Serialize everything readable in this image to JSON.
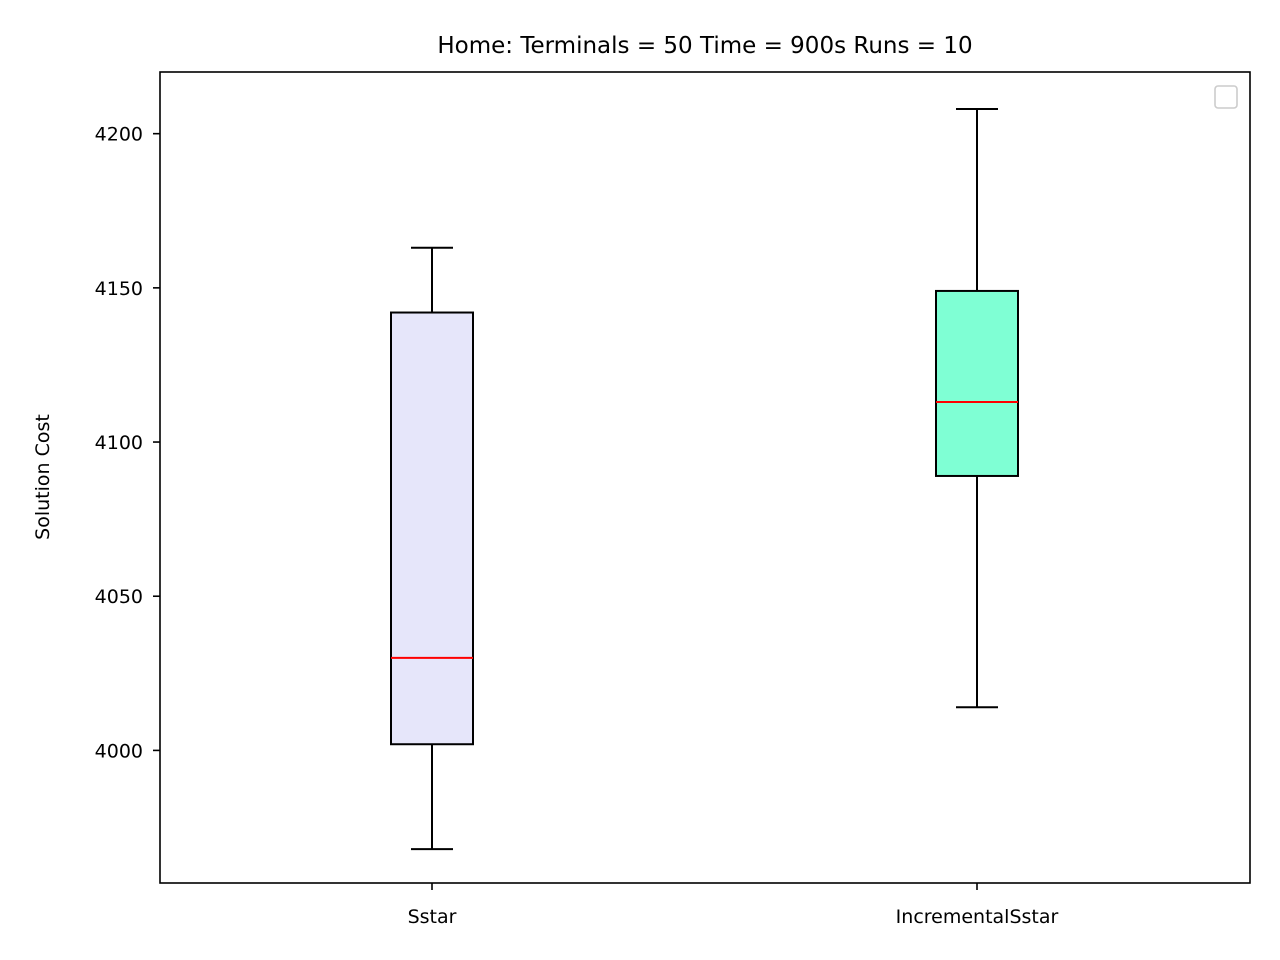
{
  "chart_data": {
    "type": "box",
    "title": "Home:  Terminals = 50  Time = 900s  Runs = 10",
    "xlabel": "",
    "ylabel": "Solution Cost",
    "ylim": [
      3957,
      4220
    ],
    "yticks": [
      4000,
      4050,
      4100,
      4150,
      4200
    ],
    "grid": false,
    "legend": "top-right",
    "legend_entries": [],
    "categories": [
      "Sstar",
      "IncrementalSstar"
    ],
    "series": [
      {
        "category": "Sstar",
        "whisker_low": 3968,
        "q1": 4002,
        "median": 4030,
        "q3": 4142,
        "whisker_high": 4163,
        "fill_color": "#e6e6fa"
      },
      {
        "category": "IncrementalSstar",
        "whisker_low": 4014,
        "q1": 4089,
        "median": 4113,
        "q3": 4149,
        "whisker_high": 4208,
        "fill_color": "#7fffd4"
      }
    ],
    "median_color": "#ff0000",
    "box_edge_color": "#000000"
  }
}
